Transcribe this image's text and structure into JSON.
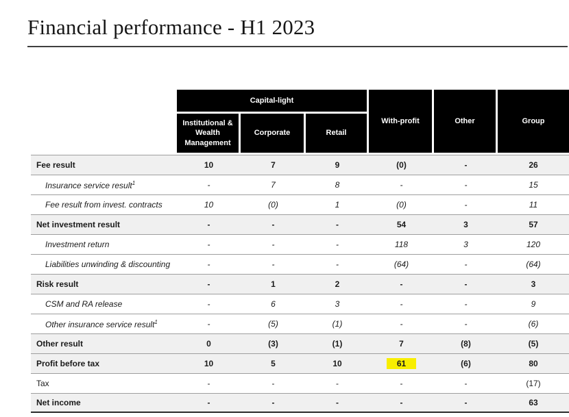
{
  "title": "Financial performance - H1 2023",
  "colors": {
    "header_bg": "#000000",
    "header_text": "#ffffff",
    "section_row_bg": "#f0f0f0",
    "row_border": "#9e9e9e",
    "bottom_border": "#2b2b2b",
    "highlight": "#f8ee00"
  },
  "table": {
    "group_header": "Capital-light",
    "columns": [
      "Institutional & Wealth Management",
      "Corporate",
      "Retail",
      "With-profit",
      "Other",
      "Group"
    ],
    "highlight_color": "#f8ee00",
    "rows": [
      {
        "label": "Fee result",
        "style": "section",
        "values": [
          "10",
          "7",
          "9",
          "(0)",
          "-",
          "26"
        ]
      },
      {
        "label": "Insurance service result",
        "footnote": "1",
        "style": "sub",
        "values": [
          "-",
          "7",
          "8",
          "-",
          "-",
          "15"
        ]
      },
      {
        "label": "Fee result from invest. contracts",
        "style": "sub",
        "values": [
          "10",
          "(0)",
          "1",
          "(0)",
          "-",
          "11"
        ]
      },
      {
        "label": "Net investment result",
        "style": "section",
        "values": [
          "-",
          "-",
          "-",
          "54",
          "3",
          "57"
        ]
      },
      {
        "label": "Investment return",
        "style": "sub",
        "values": [
          "-",
          "-",
          "-",
          "118",
          "3",
          "120"
        ]
      },
      {
        "label": "Liabilities unwinding & discounting",
        "style": "sub",
        "values": [
          "-",
          "-",
          "-",
          "(64)",
          "-",
          "(64)"
        ]
      },
      {
        "label": "Risk result",
        "style": "section",
        "values": [
          "-",
          "1",
          "2",
          "-",
          "-",
          "3"
        ]
      },
      {
        "label": "CSM and RA release",
        "style": "sub",
        "values": [
          "-",
          "6",
          "3",
          "-",
          "-",
          "9"
        ]
      },
      {
        "label": "Other insurance service result",
        "footnote": "1",
        "style": "sub",
        "values": [
          "-",
          "(5)",
          "(1)",
          "-",
          "-",
          "(6)"
        ]
      },
      {
        "label": "Other result",
        "style": "section",
        "values": [
          "0",
          "(3)",
          "(1)",
          "7",
          "(8)",
          "(5)"
        ]
      },
      {
        "label": "Profit before tax",
        "style": "section",
        "values": [
          "10",
          "5",
          "10",
          "61",
          "(6)",
          "80"
        ],
        "highlight": {
          "col": 3
        }
      },
      {
        "label": "Tax",
        "style": "plain",
        "values": [
          "-",
          "-",
          "-",
          "-",
          "-",
          "(17)"
        ]
      },
      {
        "label": "Net income",
        "style": "section",
        "values": [
          "-",
          "-",
          "-",
          "-",
          "-",
          "63"
        ]
      }
    ]
  }
}
